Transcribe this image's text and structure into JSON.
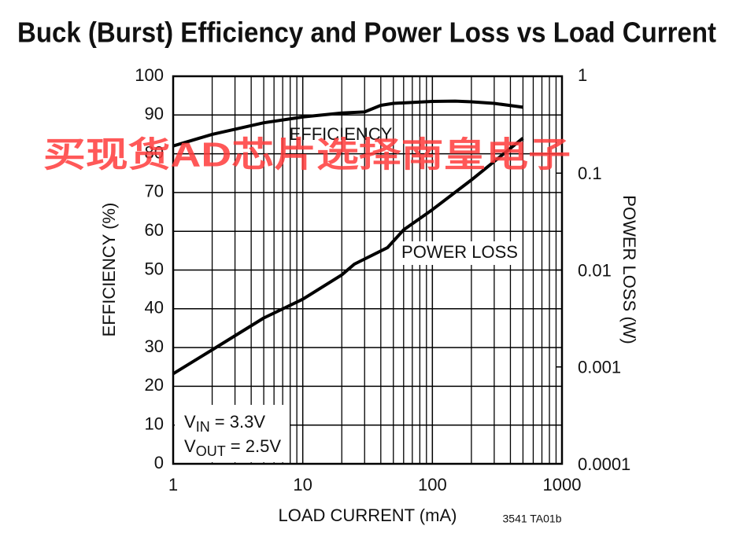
{
  "chart_data": {
    "type": "line",
    "title": "Buck (Burst) Efficiency and Power Loss vs Load Current",
    "xlabel": "LOAD CURRENT (mA)",
    "ylabel": "EFFICIENCY (%)",
    "y2label": "POWER LOSS (W)",
    "figure_code": "3541 TA01b",
    "watermark": "买现货AD芯片选择南皇电子",
    "annotations": [
      "EFFICIENCY",
      "POWER LOSS"
    ],
    "conditions": [
      {
        "symbol": "V",
        "subscript": "IN",
        "text": " = 3.3V"
      },
      {
        "symbol": "V",
        "subscript": "OUT",
        "text": " = 2.5V"
      }
    ],
    "xscale": "log",
    "y2scale": "log",
    "grid": true,
    "xlim": [
      1,
      1000
    ],
    "xticks": [
      1,
      10,
      100,
      1000
    ],
    "xgrid_minor": [
      2,
      3,
      4,
      5,
      6,
      7,
      8,
      9,
      20,
      30,
      40,
      50,
      60,
      70,
      80,
      90,
      200,
      300,
      400,
      500,
      600,
      700,
      800,
      900
    ],
    "ylim": [
      0,
      100
    ],
    "yticks": [
      0,
      10,
      20,
      30,
      40,
      50,
      60,
      70,
      80,
      90,
      100
    ],
    "y2lim": [
      0.0001,
      1
    ],
    "y2ticks": [
      0.0001,
      0.001,
      0.01,
      0.1,
      1
    ],
    "series": [
      {
        "name": "EFFICIENCY",
        "color": "#000000",
        "x": [
          1,
          2,
          5,
          10,
          20,
          30,
          40,
          50,
          100,
          150,
          200,
          300,
          500
        ],
        "values": [
          82,
          85,
          88,
          89.5,
          90.5,
          90.8,
          92.5,
          93,
          93.5,
          93.6,
          93.4,
          93,
          92
        ]
      },
      {
        "name": "POWER LOSS",
        "color": "#000000",
        "axis": "y2",
        "x": [
          1,
          2,
          5,
          10,
          20,
          25,
          30,
          45,
          60,
          100,
          200,
          500
        ],
        "values": [
          0.00085,
          0.0015,
          0.0032,
          0.005,
          0.0089,
          0.0115,
          0.013,
          0.017,
          0.026,
          0.042,
          0.085,
          0.23
        ]
      }
    ]
  }
}
